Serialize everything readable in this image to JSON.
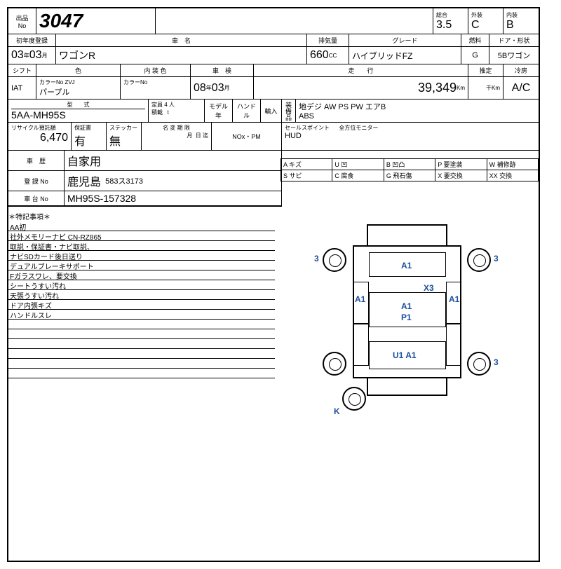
{
  "header": {
    "lot_label1": "出品",
    "lot_label2": "No",
    "lot_no": "3047",
    "sogo_label": "総合",
    "sogo": "3.5",
    "gaiso_label": "外装",
    "gaiso": "C",
    "naiso_label": "内装",
    "naiso": "B"
  },
  "row2": {
    "reg_label": "初年度登録",
    "reg_y": "03",
    "reg_m": "03",
    "y_suf": "年",
    "m_suf": "月",
    "name_label": "車　名",
    "name": "ワゴンR",
    "cc_label": "排気量",
    "cc": "660",
    "cc_suf": "CC",
    "grade_label": "グレード",
    "grade": "ハイブリッドFZ",
    "fuel_label": "燃料",
    "fuel": "G",
    "door_label": "ドア・形状",
    "door": "5Bワゴン"
  },
  "row3": {
    "shift_label": "シフト",
    "shift": "IAT",
    "color_label": "色",
    "color_no": "カラーNo ZVJ",
    "color": "パープル",
    "int_color_label": "内 装 色",
    "int_color_no": "カラーNo",
    "shaken_label": "車　検",
    "shaken_y": "08",
    "shaken_m": "03",
    "soko_label": "走　　行",
    "soko": "39,349",
    "soko_suf": "Km",
    "suitei_label": "推定",
    "suitei_suf": "千Km",
    "reibo_label": "冷房",
    "reibo": "A/C"
  },
  "row4": {
    "type_label": "型　　式",
    "type": "5AA-MH95S",
    "teiin_label": "定員",
    "teiin": "4",
    "teiin_suf": "人",
    "sekisai_label": "積載",
    "sekisai_suf": "t",
    "model_label": "モデル年",
    "handle_label": "ハンドル",
    "yunyu_label": "輸入",
    "equip_label": "装備品",
    "equip1": "地デジ AW PS PW エアB",
    "equip2": "ABS"
  },
  "row5": {
    "recycle_label": "リサイクル預託額",
    "recycle": "6,470",
    "hosho_label": "保証書",
    "hosho": "有",
    "sticker_label": "ステッカー",
    "sticker": "無",
    "henko_label": "名 変 期 限",
    "henko_m": "月",
    "henko_d": "日 迄",
    "nox_label": "NOx・PM",
    "sales_label": "セールスポイント",
    "sales1": "全方位モニター",
    "sales2": "HUD"
  },
  "row6": {
    "rireki_label": "車　歴",
    "rireki": "自家用",
    "reg_no_label": "登 録 No",
    "reg_no_region": "鹿児島",
    "reg_no": "583ス3173",
    "chassis_label": "車 台 No",
    "chassis": "MH95S-157328"
  },
  "legend": {
    "a": "A キズ",
    "u": "U 凹",
    "b": "B 凹凸",
    "p": "P 要塗装",
    "w": "W 補修跡",
    "s": "S サビ",
    "c": "C 腐食",
    "g": "G 飛石傷",
    "x": "X 要交換",
    "xx": "XX 交換"
  },
  "notes": {
    "title": "＊特記事項＊",
    "lines": [
      "AA初",
      "社外メモリーナビ CN-RZ865",
      "取説・保証書・ナビ取説、",
      "ナビSDカード後日送り",
      "デュアルブレーキサポート",
      "Fガラスワレ、要交換",
      "シートうすい汚れ",
      "天張うすい汚れ",
      "ドア内張キズ",
      "ハンドルスレ",
      "",
      "",
      "",
      "",
      "",
      ""
    ]
  },
  "damage": {
    "fl_wheel": "3",
    "fr_wheel": "3",
    "rr_wheel": "3",
    "windshield": "A1",
    "mid_x": "X3",
    "door_l": "A1",
    "door_r": "A1",
    "mid_a": "A1",
    "mid_p": "P1",
    "rear_u": "U1 A1",
    "spare": "K"
  },
  "colors": {
    "damage_text": "#1a4fa0"
  }
}
